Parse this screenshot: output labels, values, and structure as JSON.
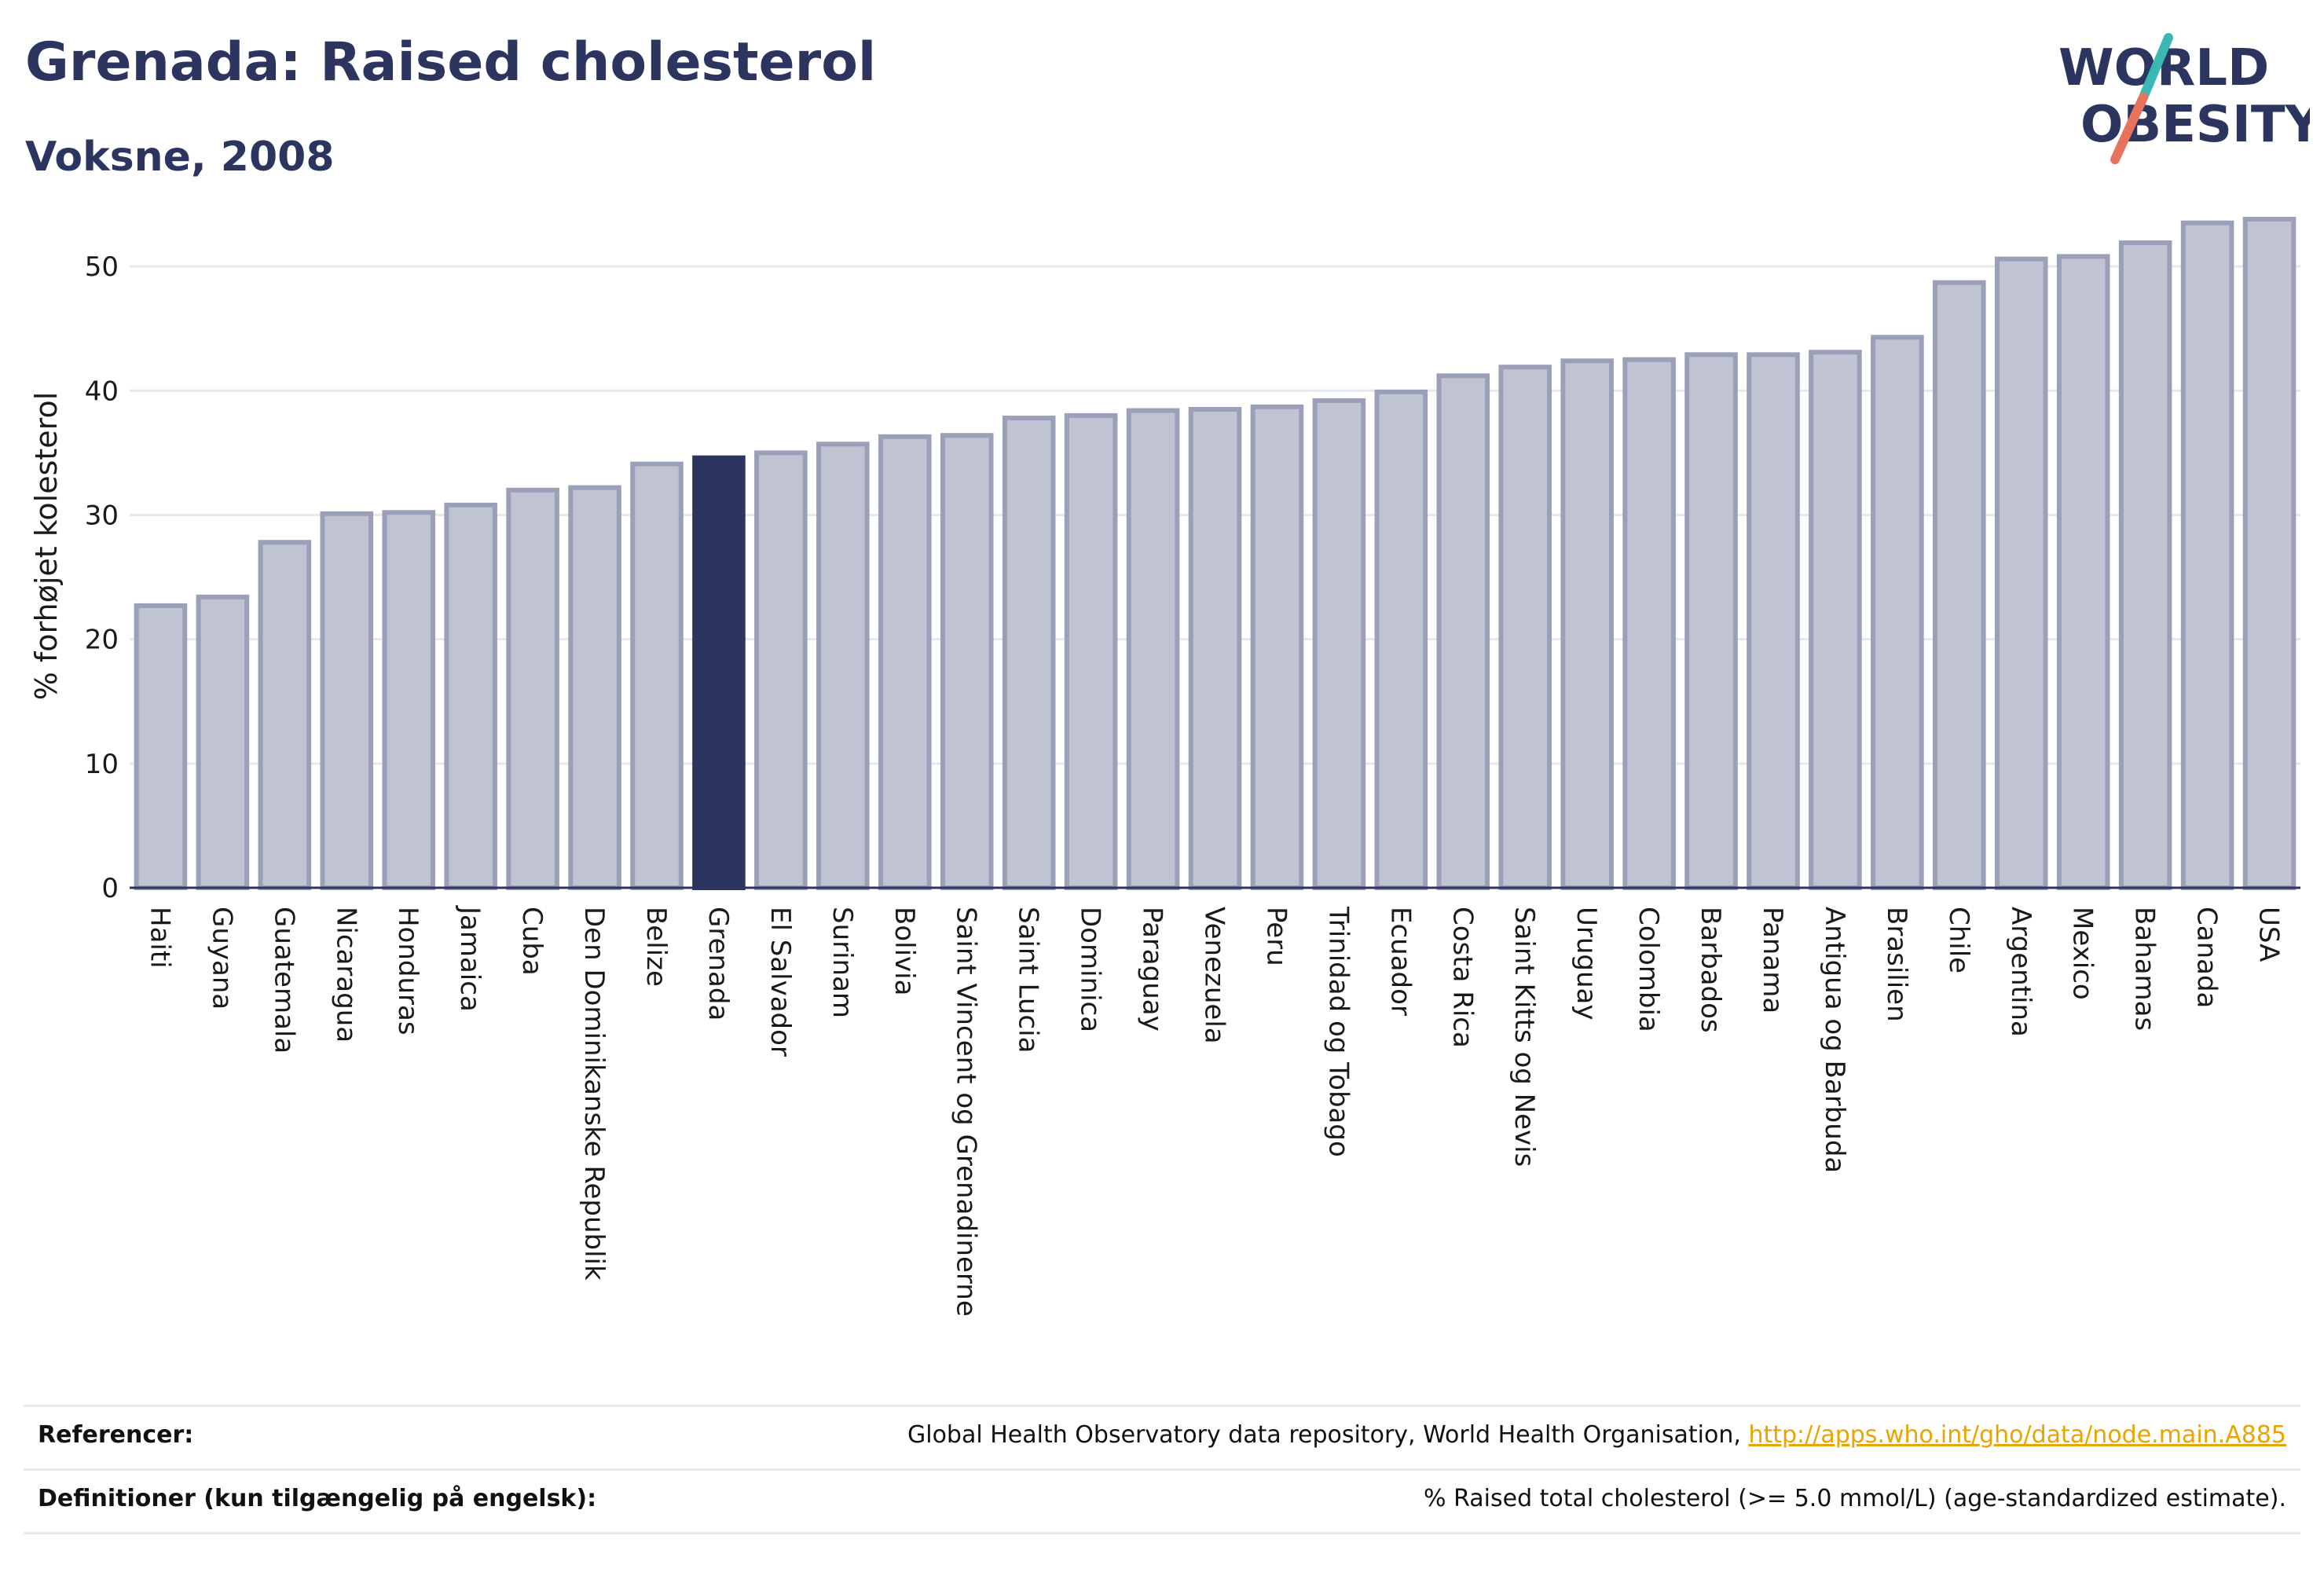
{
  "header": {
    "title": "Grenada: Raised cholesterol",
    "subtitle": "Voksne, 2008"
  },
  "logo": {
    "line1": "WORLD",
    "line2": "OBESITY"
  },
  "colors": {
    "highlight": "#2b3560",
    "bar_fill": "#c0c4d2",
    "bar_stroke": "#9aa0b8",
    "text": "#2b3560",
    "logo_teal": "#3cb8b2",
    "logo_coral": "#e8735d",
    "link": "#e9a400"
  },
  "chart_data": {
    "type": "bar",
    "ylabel": "% forhøjet kolesterol",
    "ylim": [
      0,
      55
    ],
    "yticks": [
      0,
      10,
      20,
      30,
      40,
      50
    ],
    "grid": true,
    "highlight": "Grenada",
    "categories": [
      "Haiti",
      "Guyana",
      "Guatemala",
      "Nicaragua",
      "Honduras",
      "Jamaica",
      "Cuba",
      "Den Dominikanske Republik",
      "Belize",
      "Grenada",
      "El Salvador",
      "Surinam",
      "Bolivia",
      "Saint Vincent og Grenadinerne",
      "Saint Lucia",
      "Dominica",
      "Paraguay",
      "Venezuela",
      "Peru",
      "Trinidad og Tobago",
      "Ecuador",
      "Costa Rica",
      "Saint Kitts og Nevis",
      "Uruguay",
      "Colombia",
      "Barbados",
      "Panama",
      "Antigua og Barbuda",
      "Brasilien",
      "Chile",
      "Argentina",
      "Mexico",
      "Bahamas",
      "Canada",
      "USA"
    ],
    "values": [
      22.7,
      23.4,
      27.8,
      30.1,
      30.2,
      30.8,
      32.0,
      32.2,
      34.1,
      34.6,
      35.0,
      35.7,
      36.3,
      36.4,
      37.8,
      38.0,
      38.4,
      38.5,
      38.7,
      39.2,
      39.9,
      41.2,
      41.9,
      42.4,
      42.5,
      42.9,
      42.9,
      43.1,
      44.3,
      48.7,
      50.6,
      50.8,
      51.9,
      53.5,
      53.8
    ]
  },
  "footer": {
    "references_label": "Referencer:",
    "references_text": "Global Health Observatory data repository, World Health Organisation,",
    "references_link": "http://apps.who.int/gho/data/node.main.A885",
    "definitions_label": "Definitioner (kun tilgængelig på engelsk):",
    "definitions_text": "% Raised total cholesterol (>= 5.0 mmol/L) (age-standardized estimate)."
  }
}
